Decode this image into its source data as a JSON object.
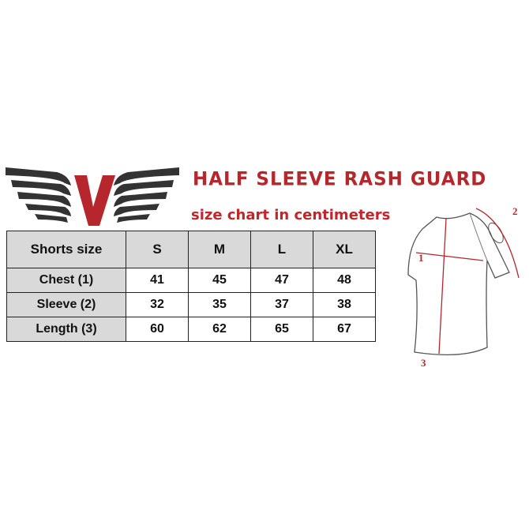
{
  "brand": {
    "logo_letter": "V"
  },
  "title": "HALF SLEEVE RASH GUARD",
  "subtitle": "size chart in centimeters",
  "table": {
    "headers": [
      "Shorts size",
      "S",
      "M",
      "L",
      "XL"
    ],
    "rows": [
      [
        "Chest (1)",
        "41",
        "45",
        "47",
        "48"
      ],
      [
        "Sleeve (2)",
        "32",
        "35",
        "37",
        "38"
      ],
      [
        "Length (3)",
        "60",
        "62",
        "65",
        "67"
      ]
    ]
  },
  "diagram": {
    "labels": [
      "1",
      "2",
      "3"
    ]
  },
  "colors": {
    "accent": "#b5272d",
    "header_bg": "#d9d9d9",
    "wing": "#333333"
  }
}
